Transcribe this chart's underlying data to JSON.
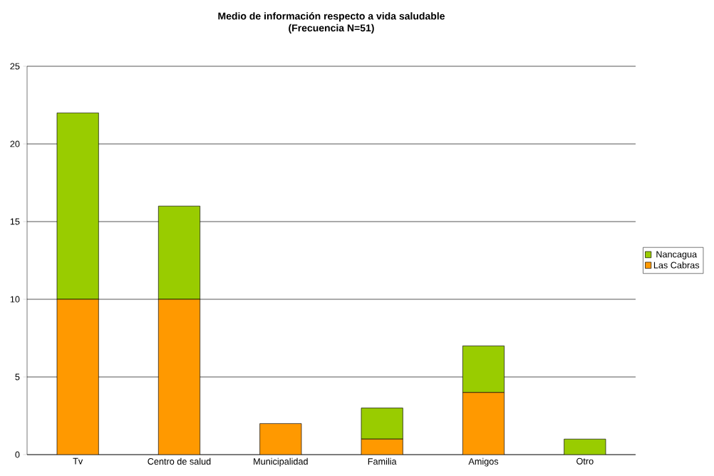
{
  "chart_data": {
    "type": "bar",
    "title": "Medio de información respecto a vida saludable",
    "subtitle": "(Frecuencia N=51)",
    "categories": [
      "Tv",
      "Centro de salud",
      "Municipalidad",
      "Familia",
      "Amigos",
      "Otro"
    ],
    "stacked": true,
    "series": [
      {
        "name": "Las Cabras",
        "color": "#ff9900",
        "values": [
          10,
          10,
          2,
          1,
          4,
          0
        ]
      },
      {
        "name": "Nancagua",
        "color": "#99cc00",
        "values": [
          12,
          6,
          0,
          2,
          3,
          1
        ]
      }
    ],
    "ylim": [
      0,
      25
    ],
    "yticks": [
      0,
      5,
      10,
      15,
      20,
      25
    ],
    "grid": "y",
    "legend": "right"
  }
}
